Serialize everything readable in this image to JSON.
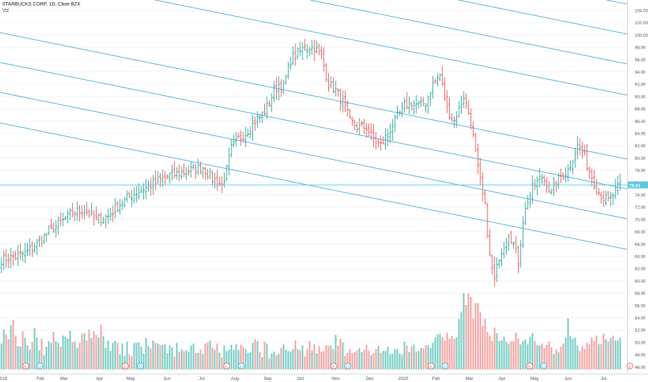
{
  "legend": {
    "symbol": "STARBUCKS CORP, 1D, Cboe BZX",
    "indicator": "Vol"
  },
  "colors": {
    "up": "#26a69a",
    "down": "#ef5350",
    "vol_up": "#7fd1c8",
    "vol_down": "#f7a9a7",
    "channel": "#2a9fd6",
    "hline": "#5fc9e0",
    "grid": "#f0f3fa",
    "axis_text": "#50535e"
  },
  "chart_data": {
    "type": "ohlc",
    "title": "STARBUCKS CORP, 1D, Cboe BZX",
    "price_axis_ticks": [
      "104.00",
      "102.00",
      "100.00",
      "98.00",
      "96.00",
      "94.00",
      "92.00",
      "90.00",
      "88.00",
      "86.00",
      "84.00",
      "82.00",
      "80.00",
      "78.00",
      "76.00",
      "74.00",
      "72.00",
      "70.00",
      "68.00",
      "66.00",
      "64.00",
      "62.00",
      "60.00",
      "58.00",
      "56.00",
      "54.00",
      "52.00",
      "50.00",
      "48.00",
      "46.00"
    ],
    "x_axis_labels": [
      "019",
      "Feb",
      "Mar",
      "Apr",
      "May",
      "Jun",
      "Jul",
      "Aug",
      "Sep",
      "Oct",
      "Nov",
      "Dec",
      "2020",
      "Feb",
      "Mar",
      "Apr",
      "May",
      "Jun",
      "Jul"
    ],
    "ylim": [
      45.2,
      105.2
    ],
    "last_price": "75.61",
    "price_path": [
      [
        0,
        63.5
      ],
      [
        5,
        63.8
      ],
      [
        10,
        64.5
      ],
      [
        15,
        66
      ],
      [
        20,
        68
      ],
      [
        25,
        69.5
      ],
      [
        30,
        71
      ],
      [
        35,
        71.5
      ],
      [
        40,
        70
      ],
      [
        45,
        70.5
      ],
      [
        50,
        72.5
      ],
      [
        55,
        74
      ],
      [
        60,
        75
      ],
      [
        65,
        76
      ],
      [
        70,
        77
      ],
      [
        75,
        77.5
      ],
      [
        80,
        78
      ],
      [
        85,
        78.5
      ],
      [
        88,
        77
      ],
      [
        93,
        75.5
      ],
      [
        95,
        78
      ],
      [
        97,
        81.5
      ],
      [
        100,
        83
      ],
      [
        103,
        84
      ],
      [
        107,
        86
      ],
      [
        110,
        87
      ],
      [
        113,
        89
      ],
      [
        115,
        91
      ],
      [
        117,
        92
      ],
      [
        119,
        91.5
      ],
      [
        122,
        96
      ],
      [
        125,
        97
      ],
      [
        128,
        98
      ],
      [
        132,
        98
      ],
      [
        135,
        96.5
      ],
      [
        138,
        92
      ],
      [
        141,
        91
      ],
      [
        144,
        89
      ],
      [
        147,
        86
      ],
      [
        150,
        85
      ],
      [
        154,
        85
      ],
      [
        157,
        83
      ],
      [
        160,
        82
      ],
      [
        163,
        84
      ],
      [
        166,
        86
      ],
      [
        170,
        88.5
      ],
      [
        173,
        89
      ],
      [
        176,
        88.5
      ],
      [
        179,
        89
      ],
      [
        182,
        92
      ],
      [
        185,
        93.5
      ],
      [
        188,
        88
      ],
      [
        191,
        86
      ],
      [
        193,
        88
      ],
      [
        195,
        90
      ],
      [
        198,
        86
      ],
      [
        201,
        78
      ],
      [
        204,
        72
      ],
      [
        206,
        64
      ],
      [
        208,
        60
      ],
      [
        210,
        64
      ],
      [
        212,
        66
      ],
      [
        214,
        68
      ],
      [
        216,
        66
      ],
      [
        218,
        63
      ],
      [
        220,
        70
      ],
      [
        222,
        73
      ],
      [
        224,
        75
      ],
      [
        226,
        76
      ],
      [
        228,
        77
      ],
      [
        230,
        76
      ],
      [
        232,
        74
      ],
      [
        234,
        76
      ],
      [
        236,
        77
      ],
      [
        239,
        78
      ],
      [
        241,
        80
      ],
      [
        243,
        82
      ],
      [
        245,
        81
      ],
      [
        247,
        79
      ],
      [
        249,
        77
      ],
      [
        251,
        75
      ],
      [
        254,
        73.5
      ],
      [
        256,
        73
      ],
      [
        258,
        74
      ],
      [
        261,
        75.6
      ]
    ],
    "volume": [
      49.8,
      52.1,
      51.3,
      50.5,
      52.8,
      53.7,
      51.1,
      49.4,
      49.3,
      51.8,
      50.7,
      49.5,
      48.8,
      50.1,
      52.3,
      50.8,
      48.7,
      50.6,
      47.9,
      49.3,
      50.2,
      49.9,
      51.7,
      50.2,
      49.9,
      49.3,
      51.1,
      50.9,
      50.6,
      51.9,
      50.0,
      50.1,
      49.1,
      49.9,
      51.4,
      51.5,
      50.3,
      52.1,
      50.7,
      51.8,
      51.2,
      50.8,
      52.9,
      51.0,
      49.1,
      50.3,
      48.6,
      49.9,
      50.2,
      49.9,
      48.0,
      49.8,
      47.8,
      50.1,
      48.0,
      47.7,
      49.9,
      49.9,
      50.0,
      49.3,
      48.2,
      50.7,
      49.4,
      49.0,
      50.3,
      49.9,
      49.8,
      49.6,
      49.6,
      49.7,
      48.2,
      49.5,
      49.2,
      47.7,
      49.9,
      48.4,
      48.9,
      48.6,
      48.7,
      48.5,
      49.5,
      49.8,
      48.3,
      48.3,
      48.8,
      48.1,
      49.8,
      50.0,
      50.3,
      49.2,
      48.8,
      49.8,
      48.3,
      47.6,
      49.5,
      48.6,
      48.8,
      49.6,
      48.8,
      49.7,
      48.8,
      49.6,
      49.3,
      48.9,
      48.3,
      48.4,
      49.9,
      50.5,
      50.2,
      48.4,
      47.6,
      50.1,
      49.8,
      47.4,
      48.2,
      48.5,
      47.9,
      48.1,
      49.1,
      49.7,
      48.8,
      48.6,
      48.5,
      48.9,
      50.3,
      48.9,
      48.7,
      49.5,
      47.7,
      48.9,
      50.2,
      48.7,
      49.7,
      48.2,
      49.4,
      48.5,
      48.6,
      49.5,
      49.4,
      49.5,
      48.9,
      51.2,
      49.5,
      50.6,
      50.0,
      47.8,
      48.3,
      48.9,
      48.2,
      48.4,
      48.7,
      49.1,
      48.4,
      48.8,
      49.6,
      48.7,
      47.9,
      48.2,
      48.9,
      49.4,
      48.3,
      48.6,
      48.6,
      49.3,
      48.1,
      48.1,
      48.9,
      48.9,
      48.2,
      48.0,
      50.1,
      49.5,
      48.4,
      49.3,
      49.6,
      48.5,
      48.6,
      49.1,
      49.0,
      49.5,
      49.5,
      49.1,
      49.9,
      50.8,
      51.3,
      51.4,
      50.9,
      50.3,
      51.6,
      50.6,
      51.0,
      50.6,
      50.8,
      53.8,
      55.0,
      58.0,
      56.1,
      58.0,
      57.4,
      53.9,
      56.4,
      56.4,
      54.9,
      52.7,
      53.8,
      51.7,
      51.1,
      50.2,
      52.4,
      51.5,
      50.2,
      50.3,
      50.9,
      50.1,
      49.7,
      50.2,
      50.2,
      51.6,
      50.6,
      49.7,
      50.2,
      50.5,
      49.7,
      50.9,
      51.5,
      50.2,
      49.5,
      49.5,
      49.8,
      49.1,
      49.6,
      50.1,
      49.2,
      48.1,
      48.9,
      48.4,
      49.3,
      49.8,
      50.8,
      53.9,
      51.0,
      50.6,
      50.8,
      49.5,
      48.6,
      49.4,
      48.9,
      49.9,
      49.7,
      50.8,
      50.2,
      51.1,
      49.7,
      49.7,
      51.4,
      50.5,
      50.1,
      50.7,
      51.1,
      50.3,
      50.3,
      50.8
    ]
  },
  "event_markers": [
    {
      "label": "E"
    },
    {
      "label": "D"
    },
    {
      "label": "E"
    },
    {
      "label": "D"
    },
    {
      "label": "E"
    },
    {
      "label": "D"
    },
    {
      "label": "E"
    },
    {
      "label": "D"
    },
    {
      "label": "E"
    },
    {
      "label": "D"
    },
    {
      "label": "E"
    },
    {
      "label": "D"
    },
    {
      "label": "E"
    }
  ]
}
